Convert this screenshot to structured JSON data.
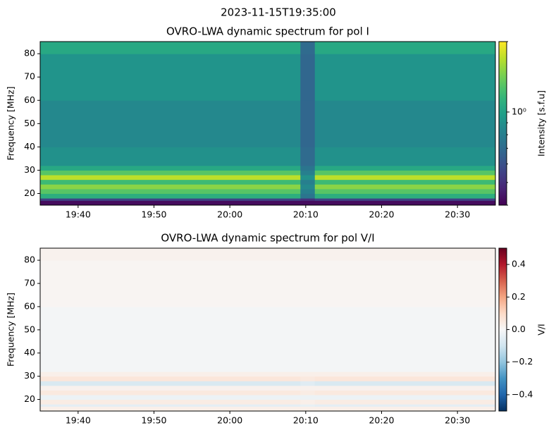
{
  "suptitle": "2023-11-15T19:35:00",
  "chart_data": [
    {
      "type": "heatmap",
      "title": "OVRO-LWA dynamic spectrum for pol I",
      "ylabel": "Frequency [MHz]",
      "xlim": [
        1175,
        1235
      ],
      "ylim": [
        15,
        85.2
      ],
      "xticks": [
        {
          "value": 1180,
          "label": "19:40"
        },
        {
          "value": 1190,
          "label": "19:50"
        },
        {
          "value": 1200,
          "label": "20:00"
        },
        {
          "value": 1210,
          "label": "20:10"
        },
        {
          "value": 1220,
          "label": "20:20"
        },
        {
          "value": 1230,
          "label": "20:30"
        }
      ],
      "yticks": [
        20,
        30,
        40,
        50,
        60,
        70,
        80
      ],
      "x_bins": [
        1175,
        1209.3,
        1211.2,
        1235
      ],
      "y_bins": [
        15,
        17,
        18,
        20,
        22,
        24,
        26,
        28,
        30,
        32,
        40,
        60,
        80,
        85.2
      ],
      "values": [
        [
          0.42,
          0.42,
          0.42
        ],
        [
          0.55,
          0.5,
          0.55
        ],
        [
          1.1,
          0.75,
          1.1
        ],
        [
          1.3,
          0.8,
          1.3
        ],
        [
          1.5,
          0.85,
          1.5
        ],
        [
          1.2,
          0.8,
          1.2
        ],
        [
          1.7,
          0.9,
          1.7
        ],
        [
          1.3,
          0.8,
          1.3
        ],
        [
          1.05,
          0.75,
          1.05
        ],
        [
          0.9,
          0.7,
          0.9
        ],
        [
          0.85,
          0.68,
          0.85
        ],
        [
          0.92,
          0.68,
          0.92
        ],
        [
          1.05,
          0.7,
          1.05
        ]
      ],
      "colorbar": {
        "label": "Intensity [s.f.u]",
        "cmap": "viridis",
        "log": true,
        "lim": [
          0.4,
          2.0
        ],
        "ticks": [
          {
            "value": 1,
            "label": "10⁰"
          }
        ],
        "minor_ticks": [
          0.4,
          0.5,
          0.6,
          0.7,
          0.8,
          0.9,
          2
        ]
      }
    },
    {
      "type": "heatmap",
      "title": "OVRO-LWA dynamic spectrum for pol V/I",
      "ylabel": "Frequency [MHz]",
      "xlim": [
        1175,
        1235
      ],
      "ylim": [
        15,
        85.2
      ],
      "xticks": [
        {
          "value": 1180,
          "label": "19:40"
        },
        {
          "value": 1190,
          "label": "19:50"
        },
        {
          "value": 1200,
          "label": "20:00"
        },
        {
          "value": 1210,
          "label": "20:10"
        },
        {
          "value": 1220,
          "label": "20:20"
        },
        {
          "value": 1230,
          "label": "20:30"
        }
      ],
      "yticks": [
        20,
        30,
        40,
        50,
        60,
        70,
        80
      ],
      "x_bins": [
        1175,
        1209.3,
        1211.2,
        1235
      ],
      "y_bins": [
        15,
        17,
        18,
        20,
        22,
        24,
        26,
        28,
        30,
        32,
        40,
        60,
        80,
        85.2
      ],
      "values": [
        [
          0.03,
          0.03,
          0.03
        ],
        [
          -0.05,
          -0.04,
          -0.05
        ],
        [
          0.04,
          0.03,
          0.04
        ],
        [
          -0.03,
          -0.03,
          -0.03
        ],
        [
          0.05,
          0.04,
          0.05
        ],
        [
          0.02,
          0.02,
          0.02
        ],
        [
          -0.08,
          -0.06,
          -0.08
        ],
        [
          0.06,
          0.05,
          0.06
        ],
        [
          0.03,
          0.03,
          0.03
        ],
        [
          -0.01,
          -0.01,
          -0.01
        ],
        [
          -0.01,
          -0.01,
          -0.01
        ],
        [
          0.01,
          0.01,
          0.01
        ],
        [
          0.02,
          0.02,
          0.02
        ]
      ],
      "colorbar": {
        "label": "V/I",
        "cmap": "RdBu_r",
        "log": false,
        "lim": [
          -0.5,
          0.5
        ],
        "ticks": [
          {
            "value": 0.4,
            "label": "0.4"
          },
          {
            "value": 0.2,
            "label": "0.2"
          },
          {
            "value": 0,
            "label": "0.0"
          },
          {
            "value": -0.2,
            "label": "−0.2"
          },
          {
            "value": -0.4,
            "label": "−0.4"
          }
        ]
      }
    }
  ]
}
